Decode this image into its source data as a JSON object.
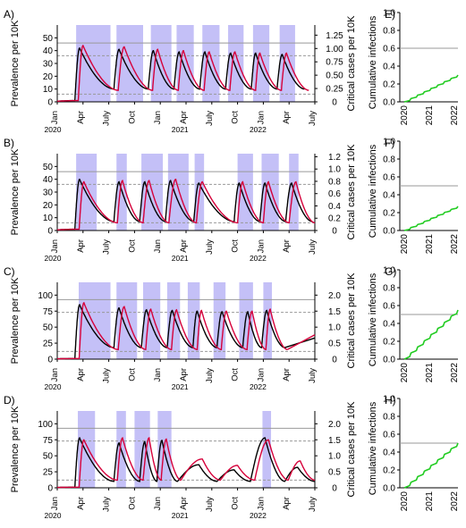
{
  "colors": {
    "shade": "#c4c0f7",
    "prevalence_line": "#000000",
    "critical_line": "#d6003a",
    "cumulative_line": "#22cc22",
    "threshold_line": "#999999"
  },
  "chart_data": [
    {
      "panel": "A)",
      "type": "line",
      "ylabel": "Prevalence per 10K",
      "y2label": "Critical cases per 10K",
      "ylim": [
        0,
        60
      ],
      "yticks": [
        0,
        10,
        20,
        30,
        40,
        50
      ],
      "y2lim": [
        0,
        1.44
      ],
      "y2ticks": [
        "0",
        "0.25",
        "0.50",
        "0.75",
        "1.00",
        "1.25"
      ],
      "xlim": [
        0,
        30
      ],
      "xticks": [
        "Jan",
        "Apr",
        "July",
        "Oct",
        "Jan",
        "Apr",
        "July",
        "Oct",
        "Jan",
        "Apr",
        "July"
      ],
      "years": [
        "2020",
        "2021",
        "2022"
      ],
      "hlines": [
        {
          "y": 46,
          "style": "solid"
        },
        {
          "y": 36,
          "style": "dashed"
        },
        {
          "y": 6,
          "style": "dashed"
        }
      ],
      "shaded_periods": [
        [
          2.2,
          6.2
        ],
        [
          6.9,
          10
        ],
        [
          10.9,
          13.3
        ],
        [
          13.9,
          15.9
        ],
        [
          16.9,
          18.9
        ],
        [
          19.9,
          21.7
        ],
        [
          22.8,
          24.7
        ],
        [
          25.9,
          27.7
        ]
      ],
      "series": [
        {
          "series_role": "prevalence",
          "peaks": [
            [
              2.6,
              42
            ],
            [
              7.2,
              41
            ],
            [
              11.2,
              40
            ],
            [
              14.2,
              39
            ],
            [
              17.2,
              39
            ],
            [
              20.2,
              38
            ],
            [
              23.1,
              38
            ],
            [
              26.2,
              37
            ]
          ],
          "troughs": [
            6.6,
            10.6,
            13.6,
            16.6,
            19.6,
            22.6,
            25.6,
            28.8
          ],
          "trough_val": 10
        },
        {
          "series_role": "critical cases",
          "peaks": [
            [
              3.0,
              44
            ],
            [
              7.8,
              43
            ],
            [
              11.7,
              41
            ],
            [
              14.7,
              40
            ],
            [
              17.7,
              39
            ],
            [
              20.7,
              39
            ],
            [
              23.6,
              38
            ],
            [
              26.7,
              38
            ]
          ],
          "troughs": [
            7.1,
            11.1,
            14.1,
            17.1,
            20.1,
            23.1,
            26.1,
            29.3
          ],
          "trough_val": 9
        }
      ],
      "side": {
        "panel": "E)",
        "ylabel": "Cumulative infections",
        "ylim": [
          0,
          1
        ],
        "yticks": [
          "0.0",
          "0.2",
          "0.4",
          "0.6",
          "0.8",
          "1.0"
        ],
        "xticks": [
          "2020",
          "2021",
          "2022"
        ],
        "threshold": 0.6,
        "end_value": 0.3
      }
    },
    {
      "panel": "B)",
      "type": "line",
      "ylabel": "Prevalence per 10K",
      "y2label": "Critical cases per 10K",
      "ylim": [
        0,
        60
      ],
      "yticks": [
        0,
        10,
        20,
        30,
        40,
        50
      ],
      "y2lim": [
        0,
        1.25
      ],
      "y2ticks": [
        "0",
        "0.2",
        "0.4",
        "0.6",
        "0.8",
        "1.0",
        "1.2"
      ],
      "xlim": [
        0,
        30
      ],
      "xticks": [
        "Jan",
        "Apr",
        "July",
        "Oct",
        "Jan",
        "Apr",
        "July",
        "Oct",
        "Jan",
        "Apr",
        "July"
      ],
      "years": [
        "2020",
        "2021",
        "2022"
      ],
      "hlines": [
        {
          "y": 46,
          "style": "solid"
        },
        {
          "y": 36,
          "style": "dashed"
        },
        {
          "y": 6,
          "style": "dashed"
        }
      ],
      "shaded_periods": [
        [
          2.2,
          4.6
        ],
        [
          6.9,
          8.1
        ],
        [
          9.8,
          12.3
        ],
        [
          12.9,
          15.3
        ],
        [
          16.0,
          17.1
        ],
        [
          21.0,
          22.8
        ],
        [
          23.8,
          25.8
        ],
        [
          27.0,
          28.1
        ]
      ],
      "series": [
        {
          "series_role": "prevalence",
          "peaks": [
            [
              2.6,
              40
            ],
            [
              7.2,
              38
            ],
            [
              10.2,
              38
            ],
            [
              13.2,
              39
            ],
            [
              16.5,
              37
            ],
            [
              21.2,
              37
            ],
            [
              24.2,
              37
            ],
            [
              27.3,
              37
            ]
          ],
          "troughs": [
            6.6,
            9.6,
            12.6,
            15.9,
            20.6,
            23.6,
            26.6,
            29.7
          ],
          "trough_val": 7
        },
        {
          "series_role": "critical cases",
          "peaks": [
            [
              3.1,
              38
            ],
            [
              7.6,
              39
            ],
            [
              10.7,
              39
            ],
            [
              13.8,
              40
            ],
            [
              16.9,
              38
            ],
            [
              21.6,
              38
            ],
            [
              24.6,
              38
            ],
            [
              27.8,
              38
            ]
          ],
          "troughs": [
            7.0,
            10.0,
            13.0,
            16.2,
            21.0,
            24.0,
            27.0,
            30
          ],
          "trough_val": 6
        },
        {
          "series_role": "prevalence",
          "peaks": [],
          "troughs": [],
          "trough_val": 0
        }
      ],
      "side": {
        "panel": "F)",
        "ylabel": "Cumulative infections",
        "ylim": [
          0,
          1
        ],
        "yticks": [
          "0.0",
          "0.2",
          "0.4",
          "0.6",
          "0.8",
          "1.0"
        ],
        "xticks": [
          "2020",
          "2021",
          "2022"
        ],
        "threshold": 0.5,
        "end_value": 0.27
      }
    },
    {
      "panel": "C)",
      "type": "line",
      "ylabel": "Prevalence per 10K",
      "y2label": "Critical cases per 10K",
      "ylim": [
        0,
        120
      ],
      "yticks": [
        0,
        25,
        50,
        75,
        100
      ],
      "y2lim": [
        0,
        2.4
      ],
      "y2ticks": [
        "0",
        "0.5",
        "1.0",
        "1.5",
        "2.0"
      ],
      "xlim": [
        0,
        30
      ],
      "xticks": [
        "Jan",
        "Apr",
        "July",
        "Oct",
        "Jan",
        "Apr",
        "July",
        "Oct",
        "Jan",
        "Apr",
        "July"
      ],
      "years": [
        "2020",
        "2021",
        "2022"
      ],
      "hlines": [
        {
          "y": 93,
          "style": "solid"
        },
        {
          "y": 73,
          "style": "dashed"
        },
        {
          "y": 12,
          "style": "dashed"
        }
      ],
      "shaded_periods": [
        [
          2.5,
          6.2
        ],
        [
          6.9,
          9.3
        ],
        [
          10.0,
          12.0
        ],
        [
          12.8,
          14.3
        ],
        [
          15.2,
          16.6
        ],
        [
          18.2,
          19.6
        ],
        [
          21.2,
          22.8
        ],
        [
          24.0,
          25.0
        ]
      ],
      "series": [
        {
          "series_role": "prevalence",
          "peaks": [
            [
              2.6,
              85
            ],
            [
              7.2,
              80
            ],
            [
              10.4,
              77
            ],
            [
              13.4,
              76
            ],
            [
              16.3,
              75
            ],
            [
              19.2,
              74
            ],
            [
              22.2,
              74
            ],
            [
              24.4,
              76
            ]
          ],
          "troughs": [
            6.6,
            9.8,
            12.8,
            15.8,
            18.6,
            21.6,
            23.8,
            26.5
          ],
          "trough_val": 18
        },
        {
          "series_role": "critical cases",
          "peaks": [
            [
              3.1,
              88
            ],
            [
              7.8,
              82
            ],
            [
              10.9,
              78
            ],
            [
              13.9,
              77
            ],
            [
              16.8,
              76
            ],
            [
              19.7,
              75
            ],
            [
              22.7,
              75
            ],
            [
              24.8,
              78
            ]
          ],
          "troughs": [
            7.1,
            10.3,
            13.3,
            16.3,
            19.1,
            22.1,
            24.3,
            26.8
          ],
          "trough_val": 15
        },
        {
          "series_role": "tail",
          "end_black": 33,
          "end_red": 38
        }
      ],
      "side": {
        "panel": "G)",
        "ylabel": "Cumulative infections",
        "ylim": [
          0,
          1
        ],
        "yticks": [
          "0.0",
          "0.2",
          "0.4",
          "0.6",
          "0.8",
          "1.0"
        ],
        "xticks": [
          "2020",
          "2021",
          "2022"
        ],
        "threshold": 0.5,
        "end_value": 0.55
      }
    },
    {
      "panel": "D)",
      "type": "line",
      "ylabel": "Prevalence per 10K",
      "y2label": "Critical cases per 10K",
      "ylim": [
        0,
        120
      ],
      "yticks": [
        0,
        25,
        50,
        75,
        100
      ],
      "y2lim": [
        0,
        2.4
      ],
      "y2ticks": [
        "0",
        "0.5",
        "1.0",
        "1.5",
        "2.0"
      ],
      "xlim": [
        0,
        30
      ],
      "xticks": [
        "Jan",
        "Apr",
        "July",
        "Oct",
        "Jan",
        "Apr",
        "July",
        "Oct",
        "Jan",
        "Apr",
        "July"
      ],
      "years": [
        "2020",
        "2021",
        "2022"
      ],
      "hlines": [
        {
          "y": 93,
          "style": "solid"
        },
        {
          "y": 73,
          "style": "dashed"
        },
        {
          "y": 12,
          "style": "dashed"
        }
      ],
      "shaded_periods": [
        [
          2.4,
          4.4
        ],
        [
          6.9,
          8.0
        ],
        [
          9.0,
          10.8
        ],
        [
          11.7,
          13.3
        ],
        [
          23.9,
          24.9
        ]
      ],
      "series": [
        {
          "series_role": "prevalence",
          "peaks": [
            [
              2.6,
              78
            ],
            [
              7.2,
              70
            ],
            [
              10.2,
              72
            ],
            [
              12.2,
              74
            ],
            [
              16.5,
              36
            ],
            [
              20.6,
              28
            ],
            [
              24.2,
              78
            ],
            [
              28.0,
              32
            ]
          ],
          "troughs": [
            6.6,
            9.6,
            11.6,
            14.0,
            18.6,
            22.5,
            26.5,
            30
          ],
          "trough_val": 10
        },
        {
          "series_role": "critical cases",
          "peaks": [
            [
              3.1,
              75
            ],
            [
              7.6,
              78
            ],
            [
              10.7,
              78
            ],
            [
              12.7,
              76
            ],
            [
              16.9,
              45
            ],
            [
              21.0,
              35
            ],
            [
              24.6,
              75
            ],
            [
              28.3,
              42
            ]
          ],
          "troughs": [
            7.0,
            10.0,
            12.1,
            14.4,
            19.0,
            23.0,
            26.9,
            30
          ],
          "trough_val": 12
        }
      ],
      "side": {
        "panel": "H)",
        "ylabel": "Cumulative infections",
        "ylim": [
          0,
          1
        ],
        "yticks": [
          "0.0",
          "0.2",
          "0.4",
          "0.6",
          "0.8",
          "1.0"
        ],
        "xticks": [
          "2020",
          "2021",
          "2022"
        ],
        "threshold": 0.5,
        "end_value": 0.5
      }
    }
  ]
}
